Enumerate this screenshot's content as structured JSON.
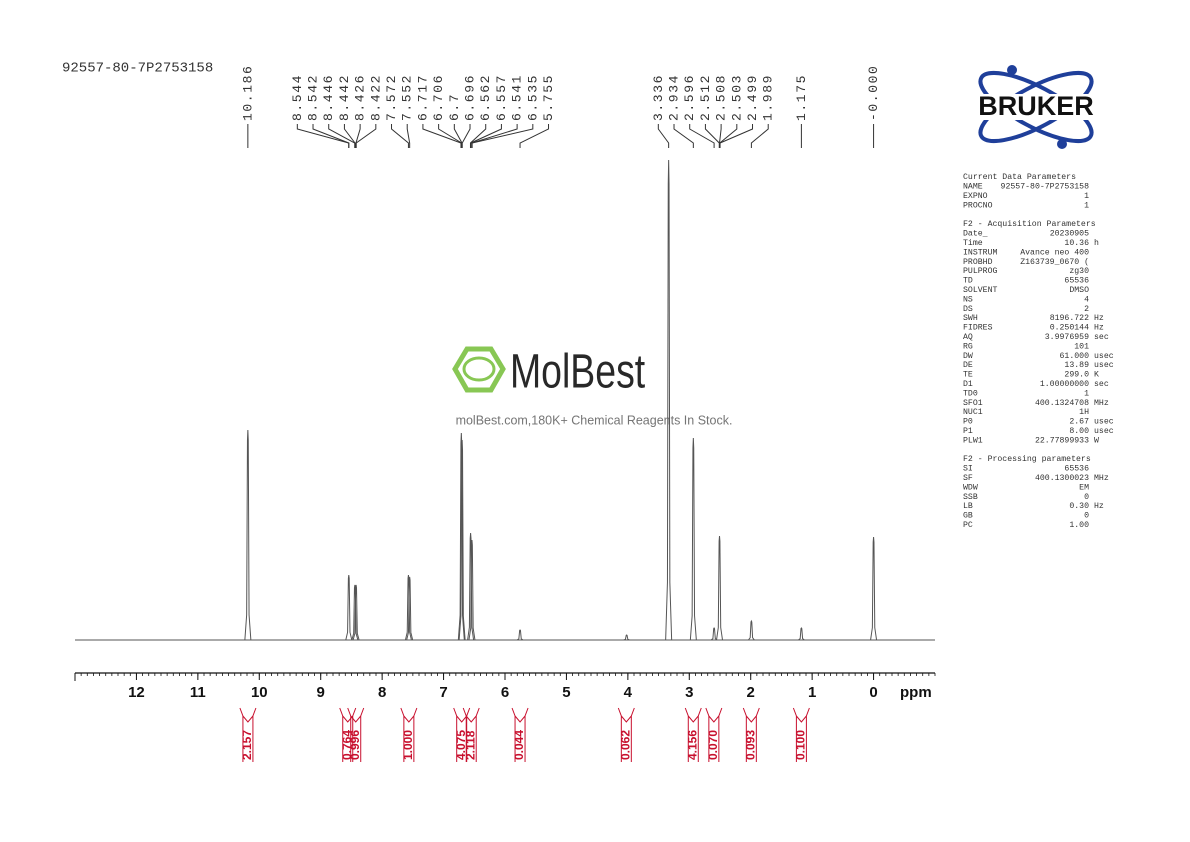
{
  "sample_id": "92557-80-7P2753158",
  "watermark": {
    "brand": "MolBest",
    "tagline": "molBest.com,180K+ Chemical Reagents In Stock."
  },
  "logo": "BRUKER",
  "parameters": [
    {
      "title": "Current Data Parameters",
      "rows": [
        [
          "NAME",
          "92557-80-7P2753158"
        ],
        [
          "EXPNO",
          "1"
        ],
        [
          "PROCNO",
          "1"
        ]
      ]
    },
    {
      "title": "F2 - Acquisition Parameters",
      "rows": [
        [
          "Date_",
          "20230905"
        ],
        [
          "Time",
          "10.36",
          "h"
        ],
        [
          "INSTRUM",
          "Avance neo 400"
        ],
        [
          "PROBHD",
          "Z163739_0670 ("
        ],
        [
          "PULPROG",
          "zg30"
        ],
        [
          "TD",
          "65536"
        ],
        [
          "SOLVENT",
          "DMSO"
        ],
        [
          "NS",
          "4"
        ],
        [
          "DS",
          "2"
        ],
        [
          "SWH",
          "8196.722",
          "Hz"
        ],
        [
          "FIDRES",
          "0.250144",
          "Hz"
        ],
        [
          "AQ",
          "3.9976959",
          "sec"
        ],
        [
          "RG",
          "101"
        ],
        [
          "DW",
          "61.000",
          "usec"
        ],
        [
          "DE",
          "13.89",
          "usec"
        ],
        [
          "TE",
          "299.0",
          "K"
        ],
        [
          "D1",
          "1.00000000",
          "sec"
        ],
        [
          "TD0",
          "1"
        ],
        [
          "SFO1",
          "400.1324708",
          "MHz"
        ],
        [
          "NUC1",
          "1H"
        ],
        [
          "P0",
          "2.67",
          "usec"
        ],
        [
          "P1",
          "8.00",
          "usec"
        ],
        [
          "PLW1",
          "22.77899933",
          "W"
        ]
      ]
    },
    {
      "title": "F2 - Processing parameters",
      "rows": [
        [
          "SI",
          "65536"
        ],
        [
          "SF",
          "400.1300023",
          "MHz"
        ],
        [
          "WDW",
          "EM"
        ],
        [
          "SSB",
          "0"
        ],
        [
          "LB",
          "0.30",
          "Hz"
        ],
        [
          "GB",
          "0"
        ],
        [
          "PC",
          "1.00"
        ]
      ]
    }
  ],
  "chart_data": {
    "type": "nmr",
    "xlabel": "ppm",
    "xlim": [
      13,
      -1
    ],
    "xticks": [
      12,
      11,
      10,
      9,
      8,
      7,
      6,
      5,
      4,
      3,
      2,
      1,
      0
    ],
    "ylim": [
      0,
      500
    ],
    "color": "#555555",
    "peaks": {
      "x": [
        10.186,
        8.543,
        8.444,
        8.424,
        7.572,
        7.552,
        6.711,
        6.698,
        6.56,
        6.538,
        5.755,
        4.02,
        3.336,
        2.934,
        2.596,
        2.508,
        1.989,
        1.175,
        0
      ],
      "values": [
        210,
        65,
        55,
        55,
        65,
        63,
        207,
        200,
        107,
        100,
        10,
        5,
        480,
        202,
        12,
        104,
        19,
        12,
        103
      ]
    },
    "peak_labels": [
      10.186,
      8.544,
      8.542,
      8.446,
      8.442,
      8.426,
      8.422,
      7.572,
      7.552,
      6.717,
      6.706,
      6.7,
      6.696,
      6.562,
      6.557,
      6.541,
      6.535,
      5.755,
      3.336,
      2.934,
      2.596,
      2.512,
      2.508,
      2.503,
      2.499,
      1.989,
      1.175,
      {
        "value": 0,
        "label": "-0.000"
      }
    ],
    "integrals": {
      "ranges": [
        [
          10.3,
          10.07
        ],
        [
          8.62,
          8.5
        ],
        [
          8.49,
          8.37
        ],
        [
          7.64,
          7.49
        ],
        [
          6.78,
          6.63
        ],
        [
          6.62,
          6.48
        ],
        [
          5.83,
          5.68
        ],
        [
          4.1,
          3.95
        ],
        [
          3.01,
          2.86
        ],
        [
          2.67,
          2.53
        ],
        [
          2.07,
          1.91
        ],
        [
          1.25,
          1.1
        ]
      ],
      "values": [
        2.157,
        0.764,
        0.996,
        1.0,
        4.075,
        2.118,
        0.044,
        0.062,
        4.156,
        0.07,
        0.093,
        0.1
      ],
      "value_labels": [
        "2.157",
        "0.764",
        "0.996",
        "1.000",
        "4.075",
        "2.118",
        "0.044",
        "0.062",
        "4.156",
        "0.070",
        "0.093",
        "0.100"
      ],
      "color": "#c8102e"
    }
  }
}
